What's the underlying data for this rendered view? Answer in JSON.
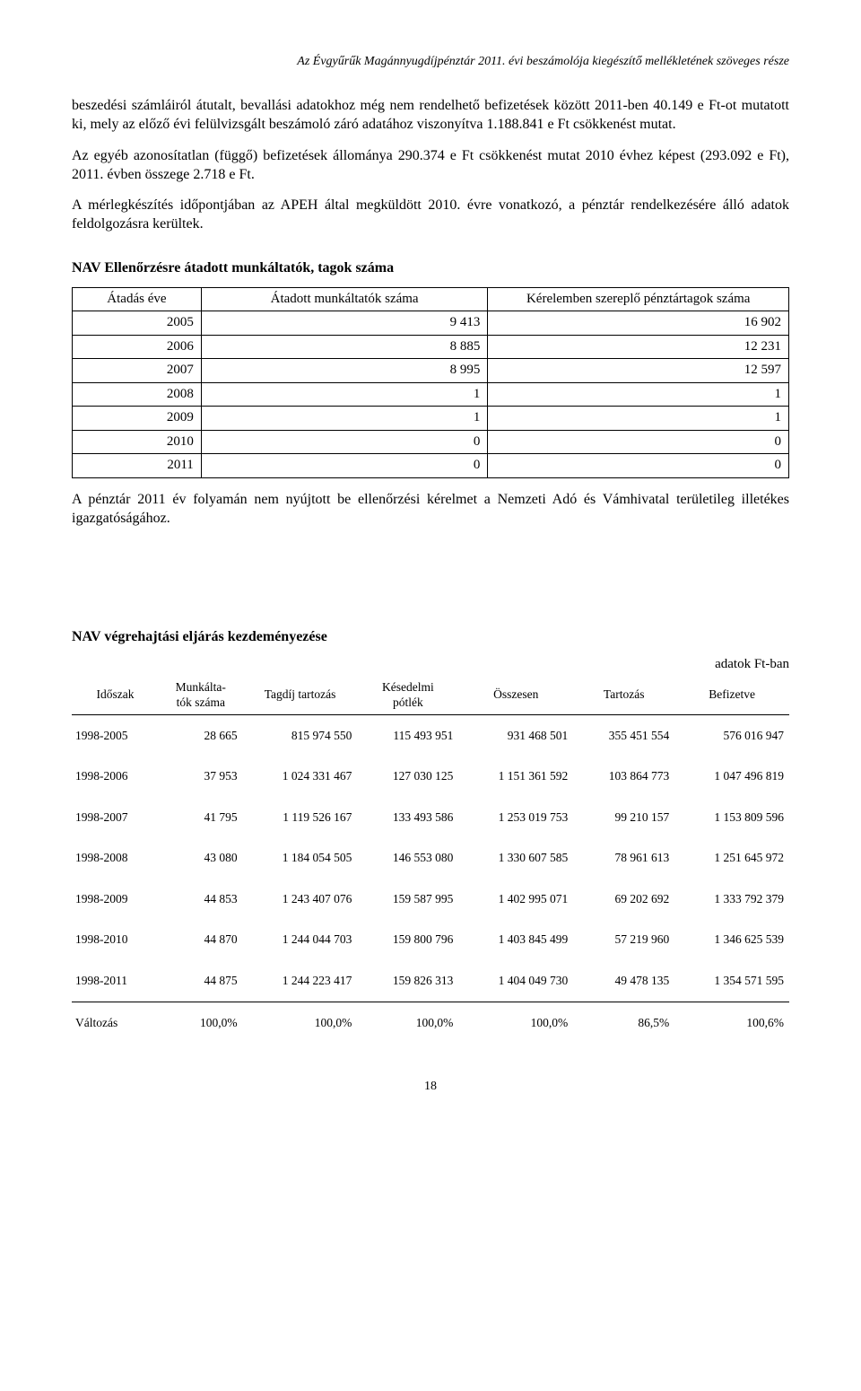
{
  "header": "Az Évgyűrűk Magánnyugdíjpénztár 2011. évi beszámolója kiegészítő mellékletének szöveges része",
  "para1": "beszedési számláiról átutalt, bevallási adatokhoz még nem rendelhető befizetések között 2011-ben 40.149 e Ft-ot mutatott ki, mely az előző évi felülvizsgált beszámoló záró adatához viszonyítva 1.188.841 e Ft csökkenést mutat.",
  "para2": "Az egyéb azonosítatlan (függő) befizetések állománya 290.374 e Ft csökkenést mutat 2010 évhez képest (293.092 e Ft), 2011. évben összege 2.718 e Ft.",
  "para3": "A mérlegkészítés időpontjában az APEH által megküldött 2010. évre vonatkozó, a pénztár rendelkezésére álló adatok feldolgozásra kerültek.",
  "section1_title": "NAV Ellenőrzésre átadott munkáltatók, tagok száma",
  "t1": {
    "h1": "Átadás éve",
    "h2": "Átadott munkáltatók száma",
    "h3": "Kérelemben szereplő pénztártagok száma",
    "rows": [
      {
        "y": "2005",
        "a": "9 413",
        "b": "16 902"
      },
      {
        "y": "2006",
        "a": "8 885",
        "b": "12 231"
      },
      {
        "y": "2007",
        "a": "8 995",
        "b": "12 597"
      },
      {
        "y": "2008",
        "a": "1",
        "b": "1"
      },
      {
        "y": "2009",
        "a": "1",
        "b": "1"
      },
      {
        "y": "2010",
        "a": "0",
        "b": "0"
      },
      {
        "y": "2011",
        "a": "0",
        "b": "0"
      }
    ]
  },
  "para4": "A pénztár 2011 év folyamán nem nyújtott be ellenőrzési kérelmet a Nemzeti Adó és Vámhivatal területileg illetékes igazgatóságához.",
  "section2_title": "NAV végrehajtási eljárás kezdeményezése",
  "right_note": "adatok Ft-ban",
  "t2": {
    "h": [
      "Időszak",
      "Munkálta-\ntók száma",
      "Tagdíj tartozás",
      "Késedelmi\npótlék",
      "Összesen",
      "Tartozás",
      "Befizetve"
    ],
    "rows": [
      {
        "p": "1998-2005",
        "c": [
          "28 665",
          "815 974 550",
          "115 493 951",
          "931 468 501",
          "355 451 554",
          "576 016 947"
        ]
      },
      {
        "p": "1998-2006",
        "c": [
          "37 953",
          "1 024 331 467",
          "127 030 125",
          "1 151 361 592",
          "103 864 773",
          "1 047 496 819"
        ]
      },
      {
        "p": "1998-2007",
        "c": [
          "41 795",
          "1 119 526 167",
          "133 493 586",
          "1 253 019 753",
          "99 210 157",
          "1 153 809 596"
        ]
      },
      {
        "p": "1998-2008",
        "c": [
          "43 080",
          "1 184 054 505",
          "146 553 080",
          "1 330 607 585",
          "78 961 613",
          "1 251 645 972"
        ]
      },
      {
        "p": "1998-2009",
        "c": [
          "44 853",
          "1 243 407 076",
          "159 587 995",
          "1 402 995 071",
          "69 202 692",
          "1 333 792 379"
        ]
      },
      {
        "p": "1998-2010",
        "c": [
          "44 870",
          "1 244 044 703",
          "159 800 796",
          "1 403 845 499",
          "57 219 960",
          "1 346 625 539"
        ]
      },
      {
        "p": "1998-2011",
        "c": [
          "44 875",
          "1 244 223 417",
          "159 826 313",
          "1 404 049 730",
          "49 478 135",
          "1 354 571 595"
        ]
      }
    ],
    "change": {
      "p": "Változás",
      "c": [
        "100,0%",
        "100,0%",
        "100,0%",
        "100,0%",
        "86,5%",
        "100,6%"
      ]
    }
  },
  "page_number": "18"
}
